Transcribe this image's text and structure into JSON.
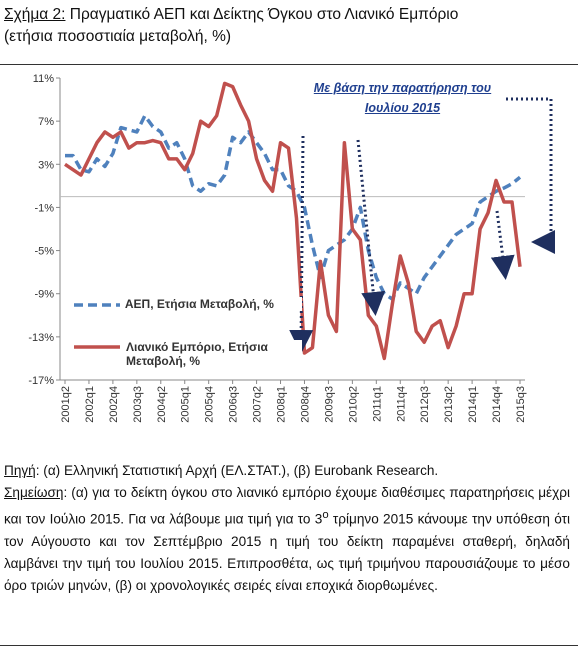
{
  "chart_data": {
    "type": "line",
    "figure_label": "Σχήμα 2:",
    "title": "Πραγματικό ΑΕΠ και Δείκτης Όγκου στο Λιανικό Εμπόριο",
    "subtitle": "(ετήσια ποσοστιαία μεταβολή, %)",
    "annotation": "Με βάση την παρατήρηση του Ιουλίου 2015",
    "categories": [
      "2001q2",
      null,
      null,
      "2002q1",
      null,
      null,
      "2002q4",
      null,
      null,
      "2003q3",
      null,
      null,
      "2004q2",
      null,
      null,
      "2005q1",
      null,
      null,
      "2005q4",
      null,
      null,
      "2006q3",
      null,
      null,
      "2007q2",
      null,
      null,
      "2008q1",
      null,
      null,
      "2008q4",
      null,
      null,
      "2009q3",
      null,
      null,
      "2010q2",
      null,
      null,
      "2011q1",
      null,
      null,
      "2011q4",
      null,
      null,
      "2012q3",
      null,
      null,
      "2013q2",
      null,
      null,
      "2014q1",
      null,
      null,
      "2014q4",
      null,
      null,
      "2015q3"
    ],
    "series": [
      {
        "name": "ΑΕΠ, Ετήσια Μεταβολή, %",
        "color": "#4f81bd",
        "line_style": "dashed",
        "values": [
          3.8,
          3.8,
          2.5,
          2.3,
          3.5,
          2.8,
          4.0,
          6.4,
          6.2,
          6.0,
          7.5,
          6.5,
          6.0,
          4.5,
          5.0,
          3.5,
          1.0,
          0.5,
          1.2,
          1.0,
          2.0,
          5.5,
          5.0,
          6.0,
          5.0,
          4.0,
          2.5,
          2.5,
          1.0,
          0.5,
          -1.0,
          -4.5,
          -7.5,
          -5.0,
          -4.5,
          -4.0,
          -3.0,
          -1.0,
          -5.0,
          -7.5,
          -9.0,
          -9.5,
          -8.0,
          -8.5,
          -9.0,
          -7.5,
          -6.5,
          -5.5,
          -4.5,
          -3.5,
          -3.0,
          -2.5,
          -0.5,
          0.0,
          0.5,
          0.8,
          1.2,
          1.8
        ]
      },
      {
        "name": "Λιανικό Εμπόριο, Ετήσια Μεταβολή, %",
        "color": "#c0504d",
        "line_style": "solid",
        "values": [
          3.0,
          2.5,
          2.0,
          3.5,
          5.0,
          6.0,
          5.5,
          6.0,
          4.5,
          5.0,
          5.0,
          5.2,
          5.0,
          3.5,
          3.5,
          2.5,
          4.0,
          7.0,
          6.5,
          7.5,
          10.5,
          10.2,
          8.5,
          7.0,
          3.5,
          1.5,
          0.5,
          5.0,
          4.5,
          -2.0,
          -14.5,
          -14.0,
          -6.0,
          -11.0,
          -12.5,
          5.0,
          -3.0,
          -4.0,
          -11.0,
          -12.0,
          -15.0,
          -10.0,
          -5.5,
          -8.0,
          -12.5,
          -13.5,
          -12.0,
          -11.5,
          -14.0,
          -12.0,
          -9.0,
          -9.0,
          -3.0,
          -1.5,
          1.5,
          -0.5,
          -0.5,
          -6.5
        ]
      }
    ],
    "ylim": [
      -17,
      11
    ],
    "yticks": [
      {
        "value": -17,
        "label": "-17%"
      },
      {
        "value": -13,
        "label": "-13%"
      },
      {
        "value": -9,
        "label": "-9%"
      },
      {
        "value": -5,
        "label": "-5%"
      },
      {
        "value": -1,
        "label": "-1%"
      },
      {
        "value": 3,
        "label": "3%"
      },
      {
        "value": 7,
        "label": "7%"
      },
      {
        "value": 11,
        "label": "11%"
      }
    ],
    "source_label": "Πηγή",
    "source": ": (α) Ελληνική Στατιστική Αρχή (ΕΛ.ΣΤΑΤ.), (β) Eurobank Research.",
    "note_label": "Σημείωση",
    "note": [
      ": (α) για το δείκτη όγκου στο λιανικό εμπόριο έχουμε διαθέσιμες παρατηρήσεις μέχρι και τον Ιούλιο 2015. Για να λάβουμε μια τιμή για το 3",
      "ο",
      " τρίμηνο 2015 κάνουμε την υπόθεση ότι τον Αύγουστο και τον Σεπτέμβριο 2015 η τιμή του δείκτη παραμένει σταθερή, δηλαδή λαμβάνει την τιμή του Ιουλίου 2015. Επιπροσθέτα, ως τιμή τριμήνου παρουσιάζουμε το μέσο όρο τριών μηνών, (β) οι χρονολογικές σειρές είναι εποχικά διορθωμένες."
    ]
  }
}
